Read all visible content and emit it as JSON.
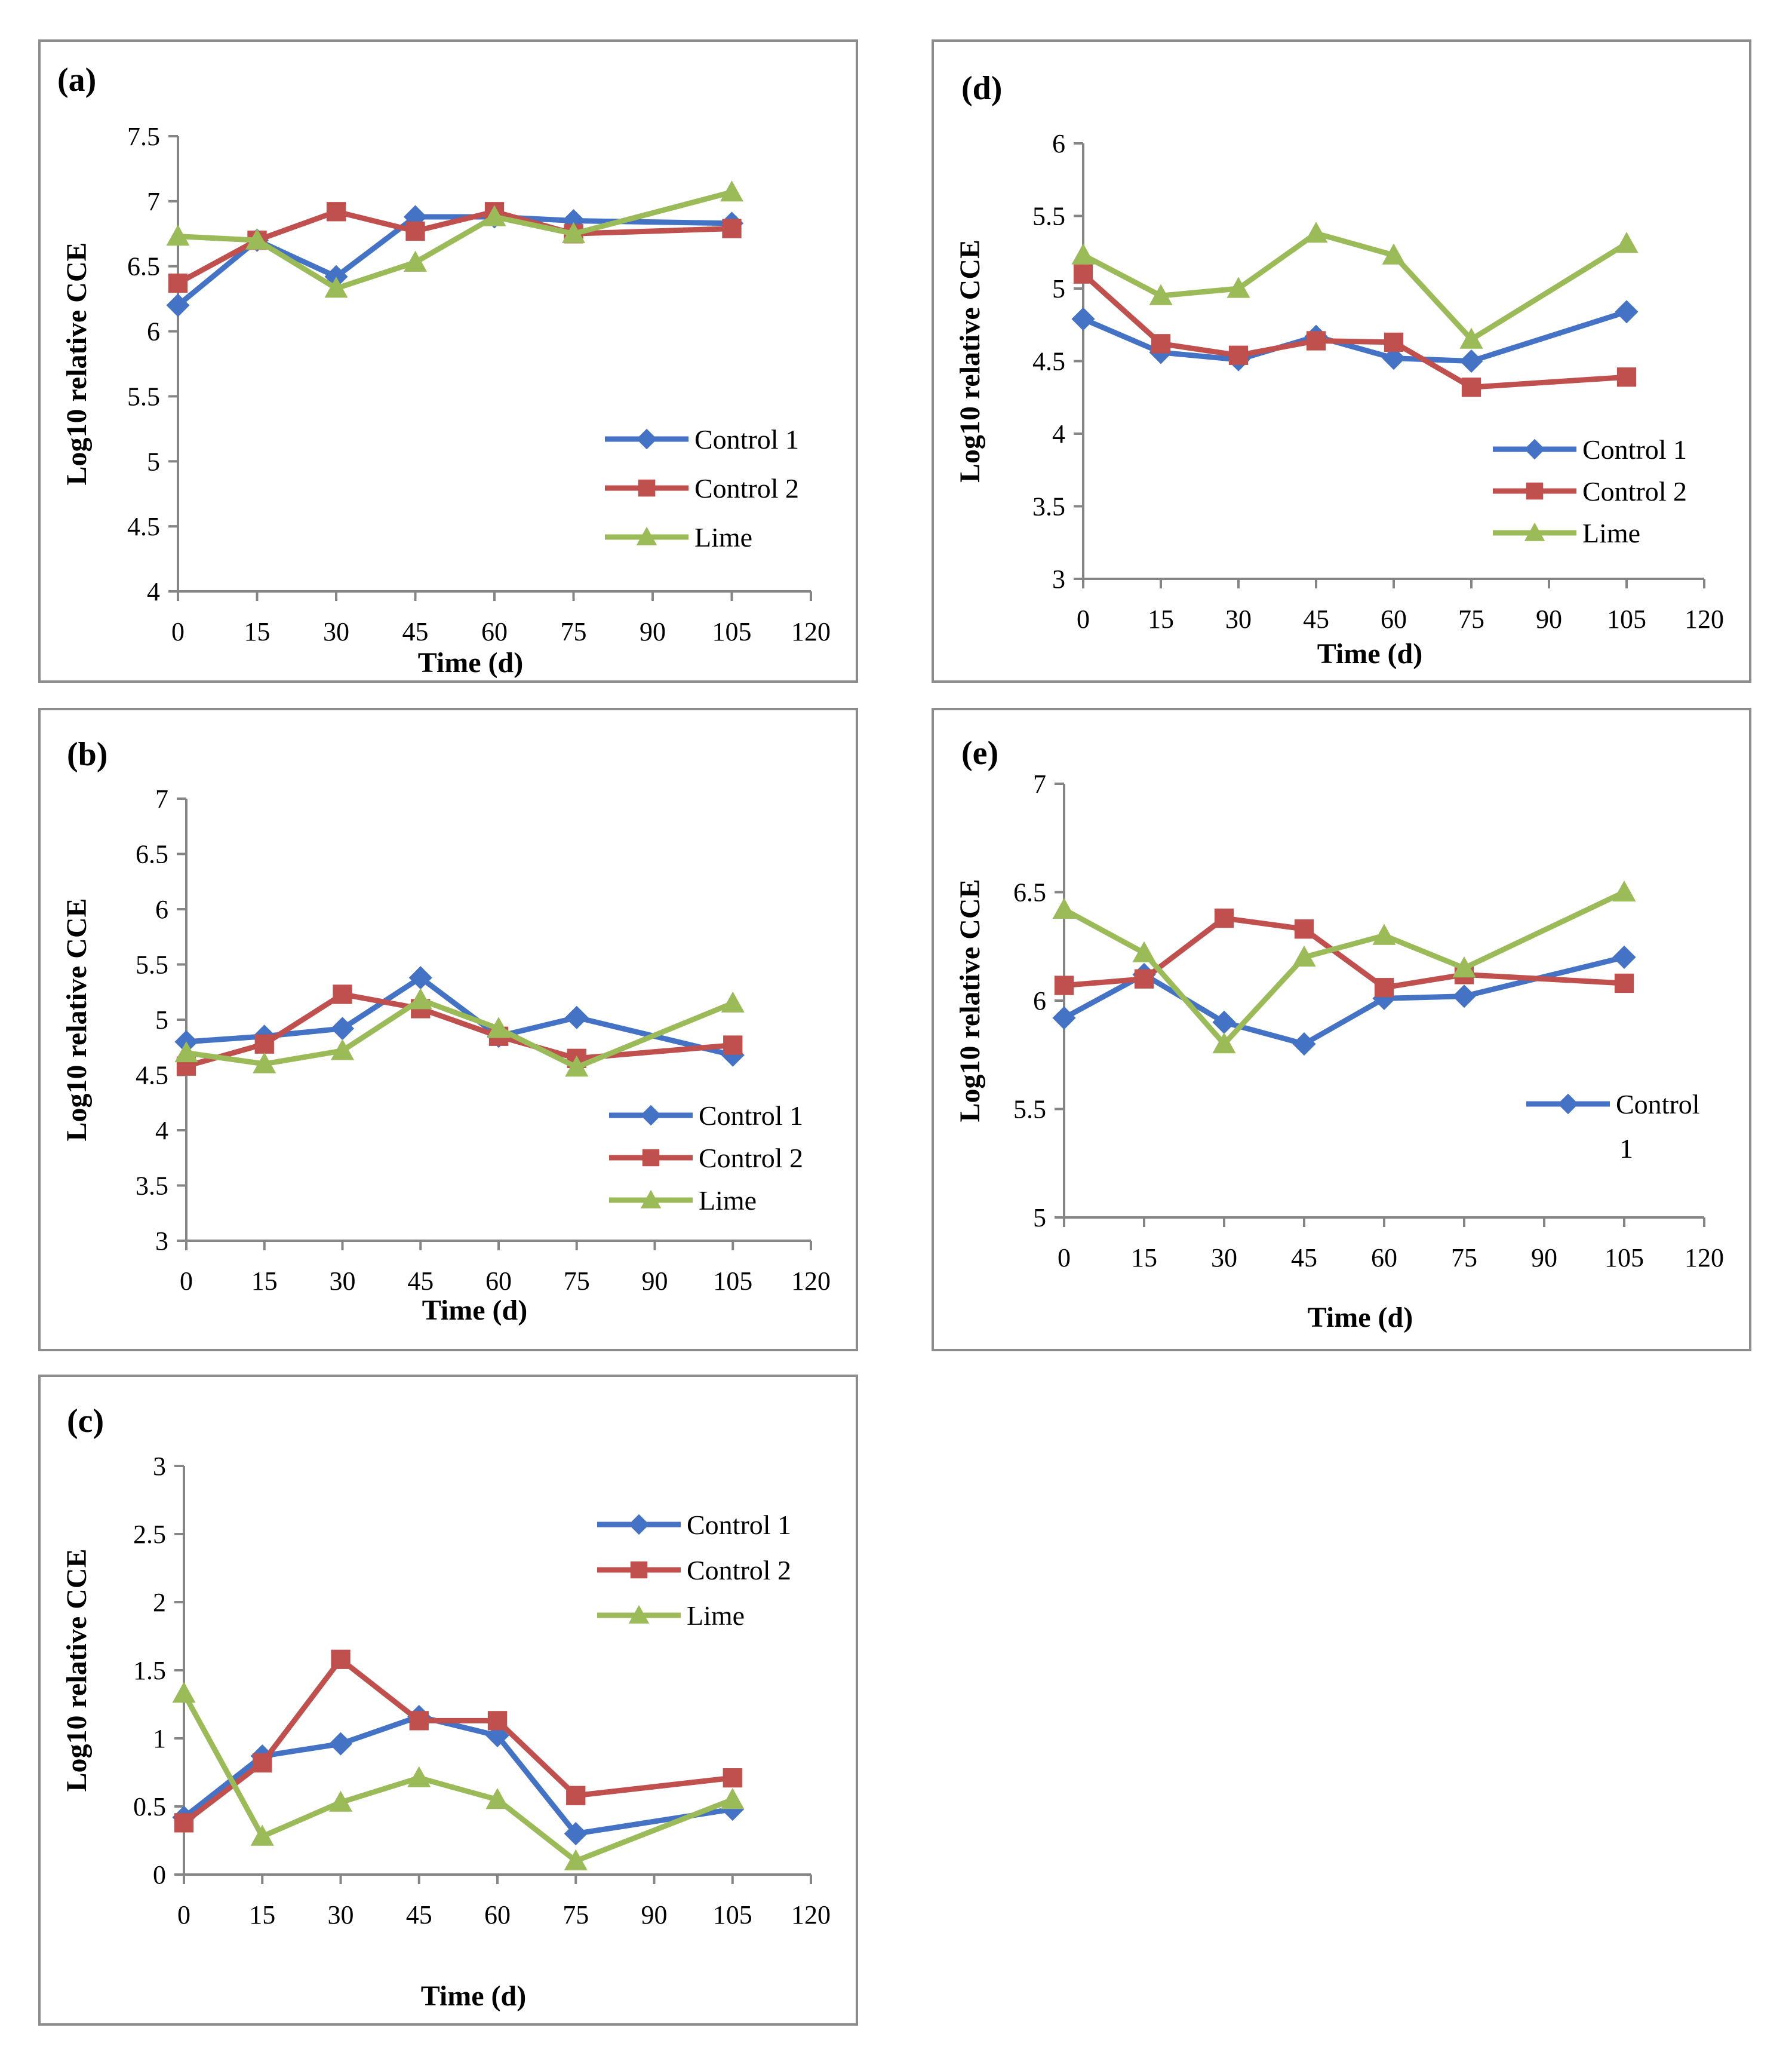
{
  "series_colors": {
    "Control 1": "#4472c4",
    "Control 2": "#c0504d",
    "Lime": "#9bbb59"
  },
  "chart_data": [
    {
      "panel": "(a)",
      "type": "line",
      "xlabel": "Time (d)",
      "ylabel": "Log10 relative CCE",
      "xlim": [
        0,
        120
      ],
      "ylim": [
        4,
        7.5
      ],
      "ystep": 0.5,
      "x_ticks": [
        "0",
        "15",
        "30",
        "45",
        "60",
        "75",
        "90",
        "105",
        "120"
      ],
      "y_ticks": [
        "4",
        "4.5",
        "5",
        "5.5",
        "6",
        "6.5",
        "7",
        "7.5"
      ],
      "legend": [
        "Control 1",
        "Control 2",
        "Lime"
      ],
      "series": [
        {
          "name": "Control 1",
          "x": [
            0,
            15,
            30,
            45,
            60,
            75,
            105
          ],
          "values": [
            6.2,
            6.7,
            6.42,
            6.88,
            6.88,
            6.85,
            6.83
          ]
        },
        {
          "name": "Control 2",
          "x": [
            0,
            15,
            30,
            45,
            60,
            75,
            105
          ],
          "values": [
            6.37,
            6.7,
            6.92,
            6.77,
            6.92,
            6.75,
            6.79
          ]
        },
        {
          "name": "Lime",
          "x": [
            0,
            15,
            30,
            45,
            60,
            75,
            105
          ],
          "values": [
            6.73,
            6.7,
            6.33,
            6.53,
            6.88,
            6.75,
            7.07
          ]
        }
      ]
    },
    {
      "panel": "(b)",
      "type": "line",
      "xlabel": "Time (d)",
      "ylabel": "Log10 relative CCE",
      "xlim": [
        0,
        120
      ],
      "ylim": [
        3,
        7
      ],
      "ystep": 0.5,
      "x_ticks": [
        "0",
        "15",
        "30",
        "45",
        "60",
        "75",
        "90",
        "105",
        "120"
      ],
      "y_ticks": [
        "3",
        "3.5",
        "4",
        "4.5",
        "5",
        "5.5",
        "6",
        "6.5",
        "7"
      ],
      "legend": [
        "Control 1",
        "Control 2",
        "Lime"
      ],
      "series": [
        {
          "name": "Control 1",
          "x": [
            0,
            15,
            30,
            45,
            60,
            75,
            105
          ],
          "values": [
            4.8,
            4.85,
            4.92,
            5.38,
            4.85,
            5.02,
            4.68
          ]
        },
        {
          "name": "Control 2",
          "x": [
            0,
            15,
            30,
            45,
            60,
            75,
            105
          ],
          "values": [
            4.58,
            4.78,
            5.23,
            5.1,
            4.85,
            4.65,
            4.77
          ]
        },
        {
          "name": "Lime",
          "x": [
            0,
            15,
            30,
            45,
            60,
            75,
            105
          ],
          "values": [
            4.7,
            4.6,
            4.72,
            5.18,
            4.92,
            4.57,
            5.15
          ]
        }
      ]
    },
    {
      "panel": "(c)",
      "type": "line",
      "xlabel": "Time (d)",
      "ylabel": "Log10 relative CCE",
      "xlim": [
        0,
        120
      ],
      "ylim": [
        0,
        3
      ],
      "ystep": 0.5,
      "x_ticks": [
        "0",
        "15",
        "30",
        "45",
        "60",
        "75",
        "90",
        "105",
        "120"
      ],
      "y_ticks": [
        "0",
        "0.5",
        "1",
        "1.5",
        "2",
        "2.5",
        "3"
      ],
      "legend": [
        "Control 1",
        "Control 2",
        "Lime"
      ],
      "series": [
        {
          "name": "Control 1",
          "x": [
            0,
            15,
            30,
            45,
            60,
            75,
            105
          ],
          "values": [
            0.42,
            0.87,
            0.96,
            1.16,
            1.02,
            0.3,
            0.48
          ]
        },
        {
          "name": "Control 2",
          "x": [
            0,
            15,
            30,
            45,
            60,
            75,
            105
          ],
          "values": [
            0.38,
            0.82,
            1.58,
            1.13,
            1.13,
            0.58,
            0.71
          ]
        },
        {
          "name": "Lime",
          "x": [
            0,
            15,
            30,
            45,
            60,
            75,
            105
          ],
          "values": [
            1.33,
            0.28,
            0.53,
            0.71,
            0.55,
            0.1,
            0.55
          ]
        }
      ]
    },
    {
      "panel": "(d)",
      "type": "line",
      "xlabel": "Time (d)",
      "ylabel": "Log10 relative CCE",
      "xlim": [
        0,
        120
      ],
      "ylim": [
        3,
        6
      ],
      "ystep": 0.5,
      "x_ticks": [
        "0",
        "15",
        "30",
        "45",
        "60",
        "75",
        "90",
        "105",
        "120"
      ],
      "y_ticks": [
        "3",
        "3.5",
        "4",
        "4.5",
        "5",
        "5.5",
        "6"
      ],
      "legend": [
        "Control 1",
        "Control 2",
        "Lime"
      ],
      "series": [
        {
          "name": "Control 1",
          "x": [
            0,
            15,
            30,
            45,
            60,
            75,
            105
          ],
          "values": [
            4.79,
            4.56,
            4.51,
            4.67,
            4.52,
            4.5,
            4.84
          ]
        },
        {
          "name": "Control 2",
          "x": [
            0,
            15,
            30,
            45,
            60,
            75,
            105
          ],
          "values": [
            5.1,
            4.62,
            4.54,
            4.64,
            4.63,
            4.32,
            4.39
          ]
        },
        {
          "name": "Lime",
          "x": [
            0,
            15,
            30,
            45,
            60,
            75,
            105
          ],
          "values": [
            5.23,
            4.95,
            5.0,
            5.38,
            5.23,
            4.65,
            5.31
          ]
        }
      ]
    },
    {
      "panel": "(e)",
      "type": "line",
      "xlabel": "Time (d)",
      "ylabel": "Log10 relative CCE",
      "xlim": [
        0,
        120
      ],
      "ylim": [
        5,
        7
      ],
      "ystep": 0.5,
      "x_ticks": [
        "0",
        "15",
        "30",
        "45",
        "60",
        "75",
        "90",
        "105",
        "120"
      ],
      "y_ticks": [
        "5",
        "5.5",
        "6",
        "6.5",
        "7"
      ],
      "legend": [
        "Control 1"
      ],
      "series": [
        {
          "name": "Control 1",
          "x": [
            0,
            15,
            30,
            45,
            60,
            75,
            105
          ],
          "values": [
            5.92,
            6.12,
            5.9,
            5.8,
            6.01,
            6.02,
            6.2
          ]
        },
        {
          "name": "Control 2",
          "x": [
            0,
            15,
            30,
            45,
            60,
            75,
            105
          ],
          "values": [
            6.07,
            6.1,
            6.38,
            6.33,
            6.06,
            6.12,
            6.08
          ]
        },
        {
          "name": "Lime",
          "x": [
            0,
            15,
            30,
            45,
            60,
            75,
            105
          ],
          "values": [
            6.42,
            6.22,
            5.8,
            6.2,
            6.3,
            6.15,
            6.5
          ]
        }
      ]
    }
  ]
}
